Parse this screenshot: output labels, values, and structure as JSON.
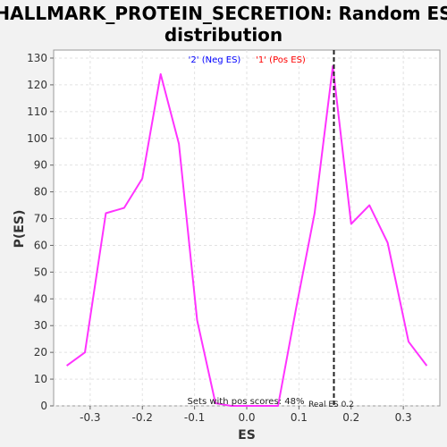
{
  "chart_data": {
    "type": "line",
    "title_line1": "HALLMARK_PROTEIN_SECRETION: Random ES",
    "title_line2": "distribution",
    "xlabel": "ES",
    "ylabel": "P(ES)",
    "xlim": [
      -0.37,
      0.37
    ],
    "ylim": [
      0,
      133
    ],
    "x_ticks": [
      -0.3,
      -0.2,
      -0.1,
      0.0,
      0.1,
      0.2,
      0.3
    ],
    "x_tick_labels": [
      "-0.3",
      "-0.2",
      "-0.1",
      "0.0",
      "0.1",
      "0.2",
      "0.3"
    ],
    "y_ticks": [
      0,
      10,
      20,
      30,
      40,
      50,
      60,
      70,
      80,
      90,
      100,
      110,
      120,
      130
    ],
    "y_tick_labels": [
      "0",
      "10",
      "20",
      "30",
      "40",
      "50",
      "60",
      "70",
      "80",
      "90",
      "100",
      "110",
      "120",
      "130"
    ],
    "grid": true,
    "legend_placement": "top-center",
    "legend": [
      {
        "label": "'2' (Neg ES)",
        "color": "#0000ff"
      },
      {
        "label": "'1' (Pos ES)",
        "color": "#ff0000"
      }
    ],
    "series": [
      {
        "color": "#ff33ff",
        "x": [
          -0.345,
          -0.31,
          -0.27,
          -0.235,
          -0.2,
          -0.165,
          -0.13,
          -0.095,
          -0.06,
          -0.03,
          0.0,
          0.03,
          0.06,
          0.095,
          0.13,
          0.165,
          0.2,
          0.235,
          0.27,
          0.31,
          0.345
        ],
        "y": [
          15,
          20,
          72,
          74,
          85,
          124,
          98,
          32,
          1,
          0,
          0,
          0,
          0,
          37,
          72,
          127,
          68,
          75,
          61,
          24,
          15
        ]
      }
    ],
    "real_es_value": 0.167,
    "real_es_label": "Real ES 0.2",
    "pos_scores_text": "Sets with pos scores: 48%"
  }
}
